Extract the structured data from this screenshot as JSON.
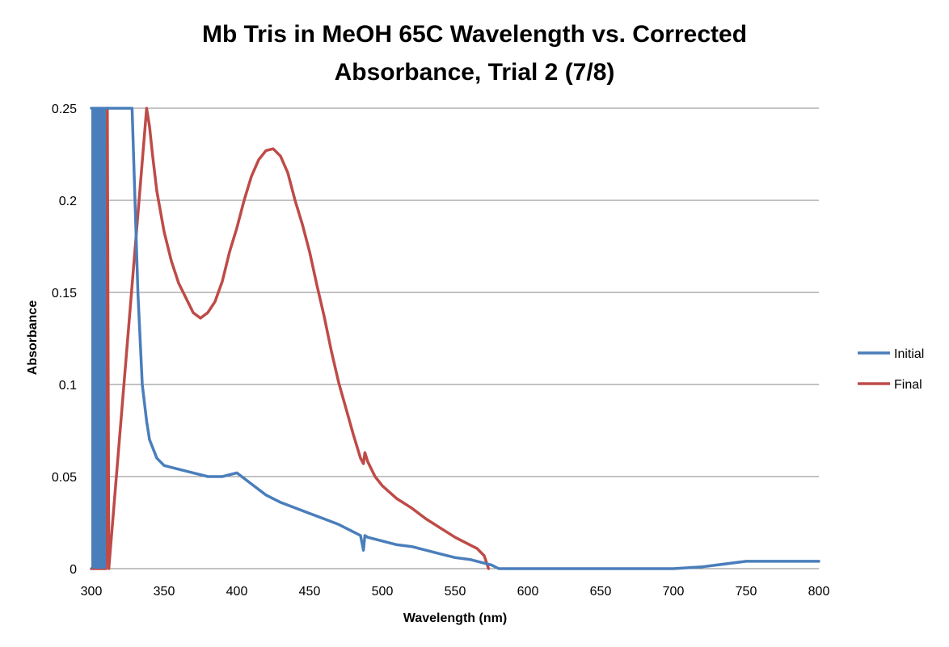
{
  "chart_data": {
    "type": "line",
    "title_line1": "Mb Tris in MeOH 65C Wavelength vs. Corrected",
    "title_line2": "Absorbance, Trial 2 (7/8)",
    "xlabel": "Wavelength (nm)",
    "ylabel": "Absorbance",
    "xlim": [
      300,
      800
    ],
    "ylim": [
      0,
      0.25
    ],
    "xticks": [
      "300",
      "350",
      "400",
      "450",
      "500",
      "550",
      "600",
      "650",
      "700",
      "750",
      "800"
    ],
    "yticks": [
      "0",
      "0.05",
      "0.1",
      "0.15",
      "0.2",
      "0.25"
    ],
    "grid": "horizontal",
    "legend_position": "right",
    "series": [
      {
        "name": "Initial",
        "color": "#4a7ebb",
        "x": [
          300,
          310,
          320,
          328,
          330,
          332,
          335,
          338,
          340,
          345,
          350,
          360,
          370,
          380,
          390,
          400,
          410,
          420,
          430,
          440,
          450,
          460,
          470,
          480,
          485,
          487,
          488,
          490,
          500,
          510,
          520,
          530,
          540,
          550,
          560,
          570,
          575,
          580,
          600,
          650,
          700,
          720,
          750,
          800
        ],
        "y": [
          0.25,
          0.25,
          0.25,
          0.25,
          0.2,
          0.15,
          0.1,
          0.08,
          0.07,
          0.06,
          0.056,
          0.054,
          0.052,
          0.05,
          0.05,
          0.052,
          0.046,
          0.04,
          0.036,
          0.033,
          0.03,
          0.027,
          0.024,
          0.02,
          0.018,
          0.01,
          0.018,
          0.017,
          0.015,
          0.013,
          0.012,
          0.01,
          0.008,
          0.006,
          0.005,
          0.003,
          0.002,
          0.0,
          0.0,
          0.0,
          0.0,
          0.001,
          0.004,
          0.004
        ]
      },
      {
        "name": "Final",
        "color": "#be4b48",
        "x": [
          300,
          310,
          311,
          312,
          338,
          340,
          342,
          345,
          350,
          355,
          360,
          365,
          370,
          375,
          380,
          385,
          390,
          395,
          400,
          405,
          410,
          415,
          420,
          425,
          430,
          435,
          440,
          445,
          450,
          455,
          460,
          465,
          470,
          475,
          480,
          485,
          487,
          488,
          490,
          495,
          500,
          510,
          520,
          530,
          540,
          550,
          560,
          565,
          570,
          573
        ],
        "y": [
          0.0,
          0.0,
          0.25,
          0.0,
          0.25,
          0.24,
          0.225,
          0.205,
          0.183,
          0.167,
          0.155,
          0.147,
          0.139,
          0.136,
          0.139,
          0.145,
          0.156,
          0.172,
          0.185,
          0.2,
          0.213,
          0.222,
          0.227,
          0.228,
          0.224,
          0.215,
          0.2,
          0.187,
          0.172,
          0.154,
          0.137,
          0.118,
          0.101,
          0.087,
          0.073,
          0.06,
          0.057,
          0.063,
          0.058,
          0.05,
          0.045,
          0.038,
          0.033,
          0.027,
          0.022,
          0.017,
          0.013,
          0.011,
          0.007,
          0.0
        ]
      }
    ]
  }
}
